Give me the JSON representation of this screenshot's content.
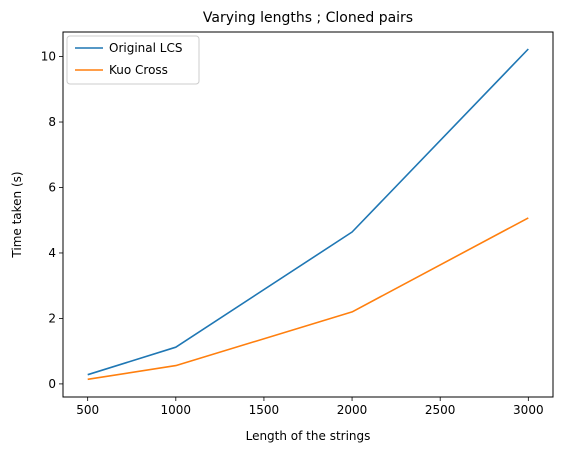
{
  "chart_data": {
    "type": "line",
    "title": "Varying lengths ; Cloned pairs",
    "xlabel": "Length of the strings",
    "ylabel": "Time taken (s)",
    "x": [
      500,
      1000,
      2000,
      3000
    ],
    "xlim": [
      360,
      3140
    ],
    "ylim": [
      -0.4,
      10.75
    ],
    "xticks": [
      500,
      1000,
      1500,
      2000,
      2500,
      3000
    ],
    "yticks": [
      0,
      2,
      4,
      6,
      8,
      10
    ],
    "grid": false,
    "legend_position": "top-left",
    "series": [
      {
        "name": "Original LCS",
        "color": "#1f77b4",
        "values": [
          0.28,
          1.12,
          4.64,
          10.23
        ]
      },
      {
        "name": "Kuo Cross",
        "color": "#ff7f0e",
        "values": [
          0.14,
          0.56,
          2.2,
          5.07
        ]
      }
    ]
  }
}
